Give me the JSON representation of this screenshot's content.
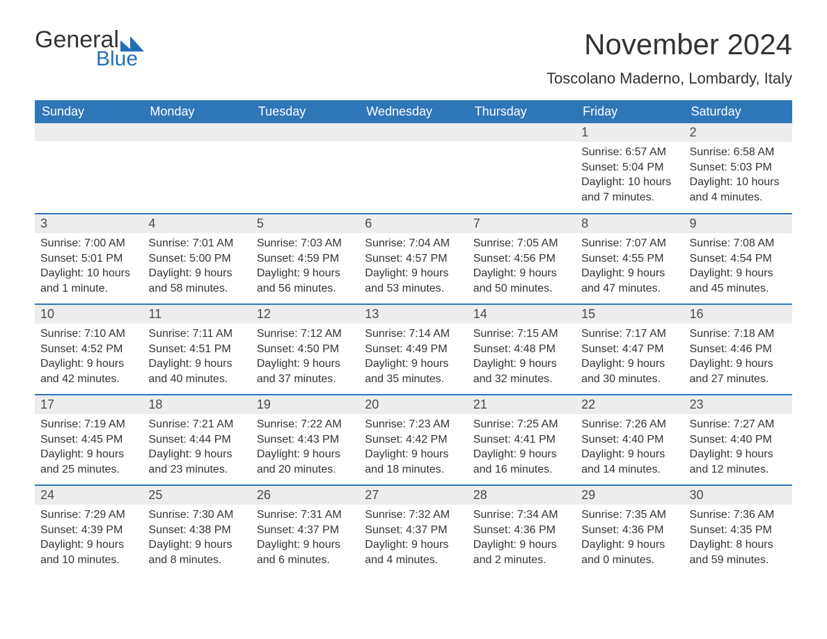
{
  "brand": {
    "word1": "General",
    "word2": "Blue",
    "accent_color": "#236fb6"
  },
  "title": "November 2024",
  "location": "Toscolano Maderno, Lombardy, Italy",
  "colors": {
    "header_bg": "#2f76b8",
    "header_text": "#ffffff",
    "row_divider": "#2f76b8",
    "daynum_bg": "#ededed",
    "text": "#333333",
    "page_bg": "#ffffff"
  },
  "fonts": {
    "title_size_pt": 42,
    "location_size_pt": 22,
    "header_size_pt": 18,
    "daynum_size_pt": 18,
    "body_size_pt": 16
  },
  "calendar": {
    "type": "table",
    "columns": [
      "Sunday",
      "Monday",
      "Tuesday",
      "Wednesday",
      "Thursday",
      "Friday",
      "Saturday"
    ],
    "weeks": [
      [
        null,
        null,
        null,
        null,
        null,
        {
          "day": 1,
          "sunrise": "6:57 AM",
          "sunset": "5:04 PM",
          "daylight": "10 hours and 7 minutes."
        },
        {
          "day": 2,
          "sunrise": "6:58 AM",
          "sunset": "5:03 PM",
          "daylight": "10 hours and 4 minutes."
        }
      ],
      [
        {
          "day": 3,
          "sunrise": "7:00 AM",
          "sunset": "5:01 PM",
          "daylight": "10 hours and 1 minute."
        },
        {
          "day": 4,
          "sunrise": "7:01 AM",
          "sunset": "5:00 PM",
          "daylight": "9 hours and 58 minutes."
        },
        {
          "day": 5,
          "sunrise": "7:03 AM",
          "sunset": "4:59 PM",
          "daylight": "9 hours and 56 minutes."
        },
        {
          "day": 6,
          "sunrise": "7:04 AM",
          "sunset": "4:57 PM",
          "daylight": "9 hours and 53 minutes."
        },
        {
          "day": 7,
          "sunrise": "7:05 AM",
          "sunset": "4:56 PM",
          "daylight": "9 hours and 50 minutes."
        },
        {
          "day": 8,
          "sunrise": "7:07 AM",
          "sunset": "4:55 PM",
          "daylight": "9 hours and 47 minutes."
        },
        {
          "day": 9,
          "sunrise": "7:08 AM",
          "sunset": "4:54 PM",
          "daylight": "9 hours and 45 minutes."
        }
      ],
      [
        {
          "day": 10,
          "sunrise": "7:10 AM",
          "sunset": "4:52 PM",
          "daylight": "9 hours and 42 minutes."
        },
        {
          "day": 11,
          "sunrise": "7:11 AM",
          "sunset": "4:51 PM",
          "daylight": "9 hours and 40 minutes."
        },
        {
          "day": 12,
          "sunrise": "7:12 AM",
          "sunset": "4:50 PM",
          "daylight": "9 hours and 37 minutes."
        },
        {
          "day": 13,
          "sunrise": "7:14 AM",
          "sunset": "4:49 PM",
          "daylight": "9 hours and 35 minutes."
        },
        {
          "day": 14,
          "sunrise": "7:15 AM",
          "sunset": "4:48 PM",
          "daylight": "9 hours and 32 minutes."
        },
        {
          "day": 15,
          "sunrise": "7:17 AM",
          "sunset": "4:47 PM",
          "daylight": "9 hours and 30 minutes."
        },
        {
          "day": 16,
          "sunrise": "7:18 AM",
          "sunset": "4:46 PM",
          "daylight": "9 hours and 27 minutes."
        }
      ],
      [
        {
          "day": 17,
          "sunrise": "7:19 AM",
          "sunset": "4:45 PM",
          "daylight": "9 hours and 25 minutes."
        },
        {
          "day": 18,
          "sunrise": "7:21 AM",
          "sunset": "4:44 PM",
          "daylight": "9 hours and 23 minutes."
        },
        {
          "day": 19,
          "sunrise": "7:22 AM",
          "sunset": "4:43 PM",
          "daylight": "9 hours and 20 minutes."
        },
        {
          "day": 20,
          "sunrise": "7:23 AM",
          "sunset": "4:42 PM",
          "daylight": "9 hours and 18 minutes."
        },
        {
          "day": 21,
          "sunrise": "7:25 AM",
          "sunset": "4:41 PM",
          "daylight": "9 hours and 16 minutes."
        },
        {
          "day": 22,
          "sunrise": "7:26 AM",
          "sunset": "4:40 PM",
          "daylight": "9 hours and 14 minutes."
        },
        {
          "day": 23,
          "sunrise": "7:27 AM",
          "sunset": "4:40 PM",
          "daylight": "9 hours and 12 minutes."
        }
      ],
      [
        {
          "day": 24,
          "sunrise": "7:29 AM",
          "sunset": "4:39 PM",
          "daylight": "9 hours and 10 minutes."
        },
        {
          "day": 25,
          "sunrise": "7:30 AM",
          "sunset": "4:38 PM",
          "daylight": "9 hours and 8 minutes."
        },
        {
          "day": 26,
          "sunrise": "7:31 AM",
          "sunset": "4:37 PM",
          "daylight": "9 hours and 6 minutes."
        },
        {
          "day": 27,
          "sunrise": "7:32 AM",
          "sunset": "4:37 PM",
          "daylight": "9 hours and 4 minutes."
        },
        {
          "day": 28,
          "sunrise": "7:34 AM",
          "sunset": "4:36 PM",
          "daylight": "9 hours and 2 minutes."
        },
        {
          "day": 29,
          "sunrise": "7:35 AM",
          "sunset": "4:36 PM",
          "daylight": "9 hours and 0 minutes."
        },
        {
          "day": 30,
          "sunrise": "7:36 AM",
          "sunset": "4:35 PM",
          "daylight": "8 hours and 59 minutes."
        }
      ]
    ],
    "labels": {
      "sunrise": "Sunrise: ",
      "sunset": "Sunset: ",
      "daylight": "Daylight: "
    }
  }
}
